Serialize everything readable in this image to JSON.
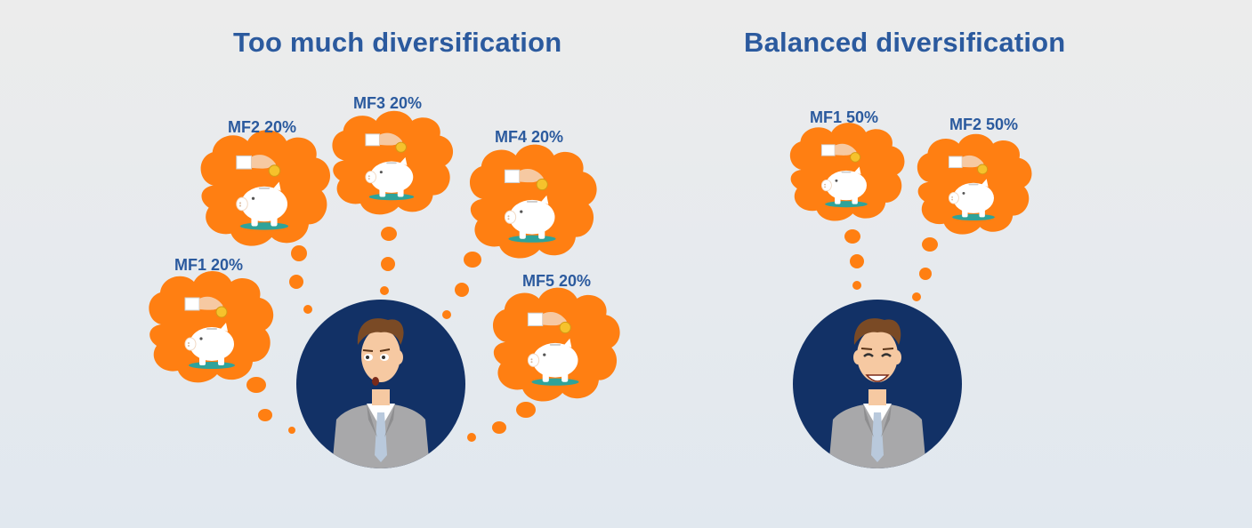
{
  "colors": {
    "title": "#2b5a9e",
    "cloud": "#ff7f12",
    "avatar_circle": "#123166",
    "suit": "#a8a8aa",
    "hair": "#7a4a25",
    "tie": "#b9c9dc",
    "piggy_base": "#2fa39a"
  },
  "panels": [
    {
      "title": "Too much diversification",
      "funds": [
        {
          "name": "MF1",
          "share": "20%"
        },
        {
          "name": "MF2",
          "share": "20%"
        },
        {
          "name": "MF3",
          "share": "20%"
        },
        {
          "name": "MF4",
          "share": "20%"
        },
        {
          "name": "MF5",
          "share": "20%"
        }
      ],
      "person_mood": "worried"
    },
    {
      "title": "Balanced diversification",
      "funds": [
        {
          "name": "MF1",
          "share": "50%"
        },
        {
          "name": "MF2",
          "share": "50%"
        }
      ],
      "person_mood": "happy"
    }
  ],
  "icons": [
    "thought-cloud-icon",
    "piggy-bank-icon",
    "hand-coin-icon",
    "businessman-avatar-icon"
  ]
}
